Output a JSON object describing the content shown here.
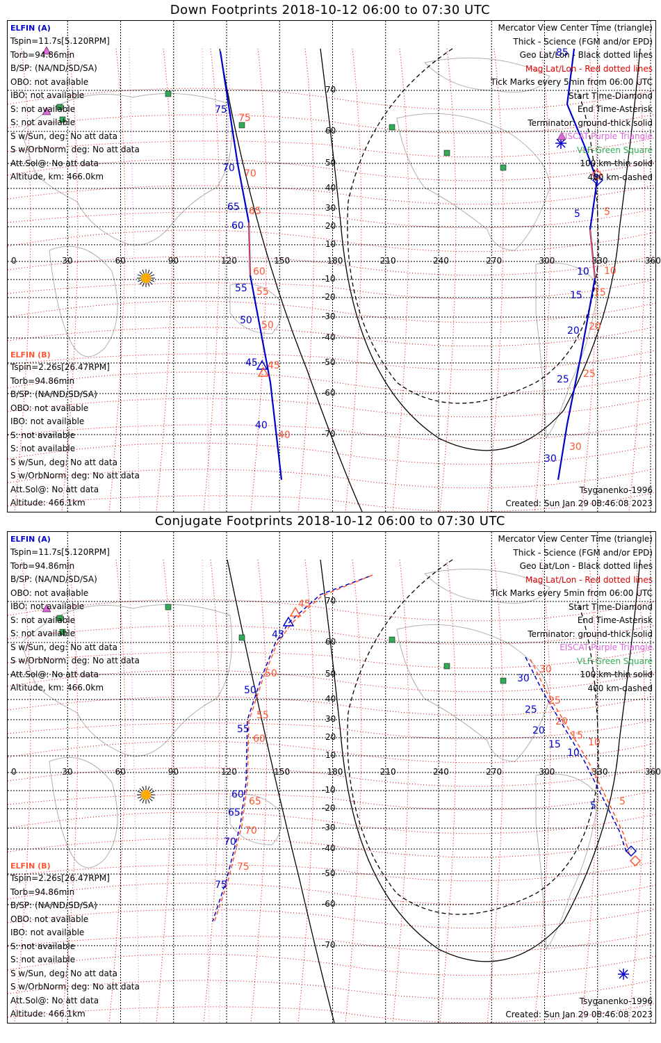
{
  "panels": [
    {
      "title": "Down Footprints 2018-10-12 06:00 to 07:30 UTC",
      "satA": {
        "name": "ELFIN (A)",
        "lines": [
          "Tspin=11.7s[5.120RPM]",
          "Torb=94.86min",
          "B/SP: (NA/ND/SD/SA)",
          "OBO: not available",
          "IBO: not available",
          "S: not available",
          "S: not available",
          "S w/Sun, deg: No att data",
          "S w/OrbNorm, deg: No att data",
          "Att.Sol@: No att data",
          "Altitude, km: 466.0km"
        ]
      },
      "satB": {
        "name": "ELFIN (B)",
        "lines": [
          "Tspin=2.26s[26.47RPM]",
          "Torb=94.86min",
          "B/SP: (NA/ND/SD/SA)",
          "OBO: not available",
          "IBO: not available",
          "S: not available",
          "S: not available",
          "S w/Sun, deg: No att data",
          "S w/OrbNorm, deg: No att data",
          "Att.Sol@: No att data",
          "Altitude: 466.1km"
        ]
      },
      "legend": [
        "Mercator View Center Time (triangle)",
        "Thick - Science (FGM and/or EPD)",
        "Geo Lat/Lon - Black dotted lines",
        "Mag Lat/Lon - Red dotted lines",
        "Tick Marks every 5min from 06:00 UTC",
        "Start Time-Diamond",
        "End Time-Asterisk",
        "Terminator: ground-thick solid",
        "EISCAT-Purple Triangle",
        "VLF-Green Square",
        "100 km-thin solid",
        "400 km-dashed"
      ],
      "model": "Tsyganenko-1996",
      "created": "Created: Sun Jan 29 08:46:08 2023",
      "lon_ticks": [
        "0",
        "30",
        "60",
        "90",
        "120",
        "150",
        "180",
        "210",
        "240",
        "270",
        "300",
        "330",
        "360"
      ],
      "lat_ticks": [
        "70",
        "60",
        "50",
        "40",
        "30",
        "20",
        "10",
        "-10",
        "-20",
        "-30",
        "-40",
        "-50",
        "-60",
        "-70"
      ],
      "track_a_labels": [
        "85",
        "75",
        "70",
        "65",
        "60",
        "55",
        "50",
        "45",
        "40",
        "5",
        "10",
        "15",
        "20",
        "25",
        "30"
      ],
      "track_b_labels": [
        "75",
        "70",
        "65",
        "60",
        "55",
        "50",
        "45",
        "40",
        "5",
        "10",
        "15",
        "20",
        "25",
        "30"
      ]
    },
    {
      "title": "Conjugate Footprints 2018-10-12 06:00 to 07:30 UTC",
      "satA": {
        "name": "ELFIN (A)",
        "lines": [
          "Tspin=11.7s[5.120RPM]",
          "Torb=94.86min",
          "B/SP: (NA/ND/SD/SA)",
          "OBO: not available",
          "IBO: not available",
          "S: not available",
          "S: not available",
          "S w/Sun, deg: No att data",
          "S w/OrbNorm, deg: No att data",
          "Att.Sol@: No att data",
          "Altitude, km: 466.0km"
        ]
      },
      "satB": {
        "name": "ELFIN (B)",
        "lines": [
          "Tspin=2.26s[26.47RPM]",
          "Torb=94.86min",
          "B/SP: (NA/ND/SD/SA)",
          "OBO: not available",
          "IBO: not available",
          "S: not available",
          "S: not available",
          "S w/Sun, deg: No att data",
          "S w/OrbNorm, deg: No att data",
          "Att.Sol@: No att data",
          "Altitude: 466.1km"
        ]
      },
      "legend": [
        "Mercator View Center Time (triangle)",
        "Thick - Science (FGM and/or EPD)",
        "Geo Lat/Lon - Black dotted lines",
        "Mag Lat/Lon - Red dotted lines",
        "Tick Marks every 5min from 06:00 UTC",
        "Start Time-Diamond",
        "End Time-Asterisk",
        "Terminator: ground-thick solid",
        "EISCAT-Purple Triangle",
        "VLF-Green Square",
        "100 km-thin solid",
        "400 km-dashed"
      ],
      "model": "Tsyganenko-1996",
      "created": "Created: Sun Jan 29 08:46:08 2023",
      "lon_ticks": [
        "0",
        "30",
        "60",
        "90",
        "120",
        "150",
        "180",
        "210",
        "240",
        "270",
        "300",
        "330",
        "360"
      ],
      "lat_ticks": [
        "70",
        "60",
        "50",
        "40",
        "30",
        "20",
        "10",
        "-10",
        "-20",
        "-30",
        "-40",
        "-50",
        "-60",
        "-70"
      ],
      "track_a_labels": [
        "45",
        "50",
        "55",
        "60",
        "65",
        "70",
        "75",
        "30",
        "25",
        "20",
        "15",
        "10",
        "5"
      ],
      "track_b_labels": [
        "45",
        "50",
        "55",
        "60",
        "65",
        "70",
        "75",
        "30",
        "25",
        "20",
        "15",
        "10",
        "5"
      ]
    }
  ],
  "colors": {
    "satA": "#0000cc",
    "satB": "#ff5533",
    "mag": "#dd0000",
    "eiscat": "#dd66dd",
    "vlf": "#33aa55",
    "sun": "#ffaa00"
  }
}
